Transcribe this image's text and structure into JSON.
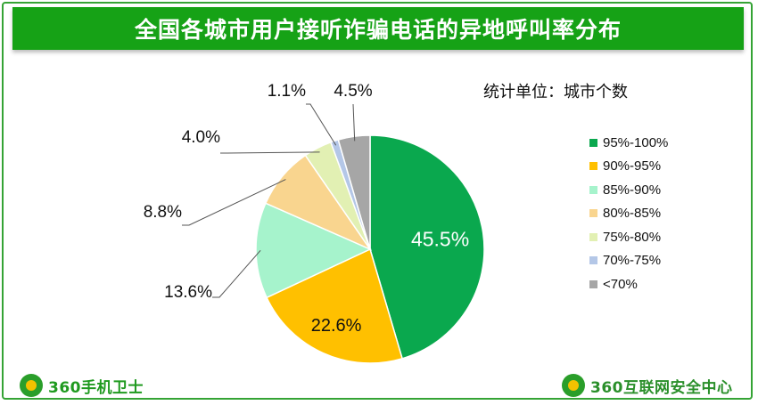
{
  "title": "全国各城市用户接听诈骗电话的异地呼叫率分布",
  "unit_note": "统计单位：城市个数",
  "brand_left": "360手机卫士",
  "brand_right": "360互联网安全中心",
  "chart_data": {
    "type": "pie",
    "start_angle": "12 o'clock, clockwise",
    "categories": [
      "95%-100%",
      "90%-95%",
      "85%-90%",
      "80%-85%",
      "75%-80%",
      "70%-75%",
      "<70%"
    ],
    "values": [
      45.5,
      22.6,
      13.6,
      8.8,
      4.0,
      1.1,
      4.5
    ],
    "labels": [
      "45.5%",
      "22.6%",
      "13.6%",
      "8.8%",
      "4.0%",
      "1.1%",
      "4.5%"
    ],
    "colors": [
      "#0aa84e",
      "#ffc000",
      "#a6f3cc",
      "#f9d58f",
      "#e2f0b3",
      "#b4c7e7",
      "#a6a6a6"
    ],
    "legend_position": "right"
  }
}
